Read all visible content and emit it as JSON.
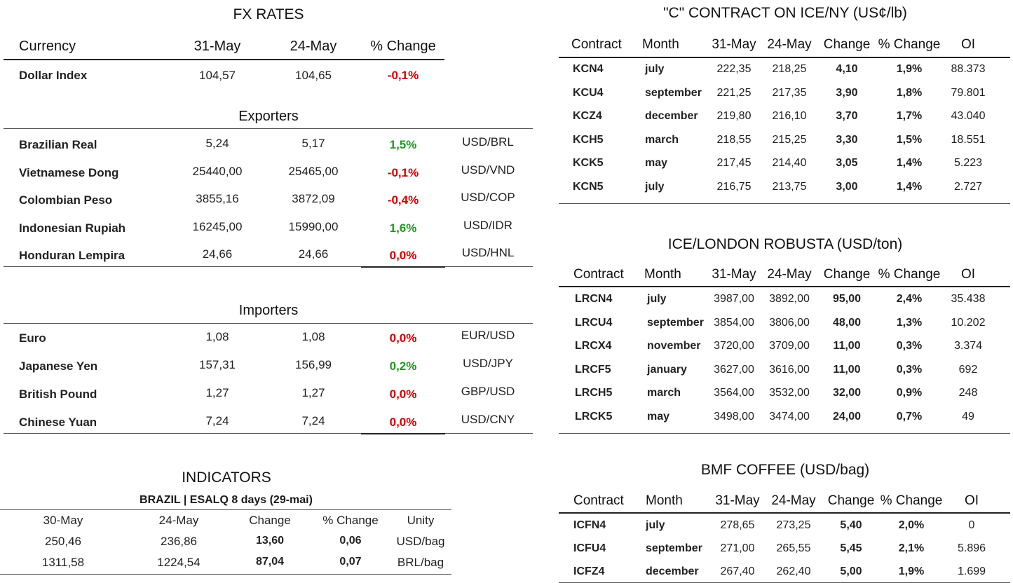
{
  "fx": {
    "title": "FX RATES",
    "headers": {
      "currency": "Currency",
      "d1": "31-May",
      "d2": "24-May",
      "chg": "% Change"
    },
    "dollar_index": {
      "name": "Dollar Index",
      "v1": "104,57",
      "v2": "104,65",
      "chg": "-0,1%"
    },
    "exporters_title": "Exporters",
    "exporters": [
      {
        "name": "Brazilian Real",
        "v1": "5,24",
        "v2": "5,17",
        "chg": "1,5%",
        "pair": "USD/BRL",
        "dir": "pos"
      },
      {
        "name": "Vietnamese Dong",
        "v1": "25440,00",
        "v2": "25465,00",
        "chg": "-0,1%",
        "pair": "USD/VND",
        "dir": "neg"
      },
      {
        "name": "Colombian Peso",
        "v1": "3855,16",
        "v2": "3872,09",
        "chg": "-0,4%",
        "pair": "USD/COP",
        "dir": "neg"
      },
      {
        "name": "Indonesian Rupiah",
        "v1": "16245,00",
        "v2": "15990,00",
        "chg": "1,6%",
        "pair": "USD/IDR",
        "dir": "pos"
      },
      {
        "name": "Honduran Lempira",
        "v1": "24,66",
        "v2": "24,66",
        "chg": "0,0%",
        "pair": "USD/HNL",
        "dir": "zero"
      }
    ],
    "importers_title": "Importers",
    "importers": [
      {
        "name": "Euro",
        "v1": "1,08",
        "v2": "1,08",
        "chg": "0,0%",
        "pair": "EUR/USD",
        "dir": "zero"
      },
      {
        "name": "Japanese Yen",
        "v1": "157,31",
        "v2": "156,99",
        "chg": "0,2%",
        "pair": "USD/JPY",
        "dir": "pos"
      },
      {
        "name": "British Pound",
        "v1": "1,27",
        "v2": "1,27",
        "chg": "0,0%",
        "pair": "GBP/USD",
        "dir": "zero"
      },
      {
        "name": "Chinese Yuan",
        "v1": "7,24",
        "v2": "7,24",
        "chg": "0,0%",
        "pair": "USD/CNY",
        "dir": "zero"
      }
    ]
  },
  "indicators": {
    "title": "INDICATORS",
    "subtitle": "BRAZIL | ESALQ 8 days (29-mai)",
    "headers": [
      "30-May",
      "24-May",
      "Change",
      "% Change",
      "Unity"
    ],
    "rows": [
      [
        "250,46",
        "236,86",
        "13,60",
        "0,06",
        "USD/bag"
      ],
      [
        "1311,58",
        "1224,54",
        "87,04",
        "0,07",
        "BRL/bag"
      ]
    ]
  },
  "contract_headers": [
    "Contract",
    "Month",
    "31-May",
    "24-May",
    "Change",
    "% Change",
    "OI"
  ],
  "ice_ny": {
    "title": "\"C\" CONTRACT ON ICE/NY (US¢/lb)",
    "rows": [
      [
        "KCN4",
        "july",
        "222,35",
        "218,25",
        "4,10",
        "1,9%",
        "88.373"
      ],
      [
        "KCU4",
        "september",
        "221,25",
        "217,35",
        "3,90",
        "1,8%",
        "79.801"
      ],
      [
        "KCZ4",
        "december",
        "219,80",
        "216,10",
        "3,70",
        "1,7%",
        "43.040"
      ],
      [
        "KCH5",
        "march",
        "218,55",
        "215,25",
        "3,30",
        "1,5%",
        "18.551"
      ],
      [
        "KCK5",
        "may",
        "217,45",
        "214,40",
        "3,05",
        "1,4%",
        "5.223"
      ],
      [
        "KCN5",
        "july",
        "216,75",
        "213,75",
        "3,00",
        "1,4%",
        "2.727"
      ]
    ]
  },
  "ice_london": {
    "title": "ICE/LONDON ROBUSTA (USD/ton)",
    "rows": [
      [
        "LRCN4",
        "july",
        "3987,00",
        "3892,00",
        "95,00",
        "2,4%",
        "35.438"
      ],
      [
        "LRCU4",
        "september",
        "3854,00",
        "3806,00",
        "48,00",
        "1,3%",
        "10.202"
      ],
      [
        "LRCX4",
        "november",
        "3720,00",
        "3709,00",
        "11,00",
        "0,3%",
        "3.374"
      ],
      [
        "LRCF5",
        "january",
        "3627,00",
        "3616,00",
        "11,00",
        "0,3%",
        "692"
      ],
      [
        "LRCH5",
        "march",
        "3564,00",
        "3532,00",
        "32,00",
        "0,9%",
        "248"
      ],
      [
        "LRCK5",
        "may",
        "3498,00",
        "3474,00",
        "24,00",
        "0,7%",
        "49"
      ]
    ]
  },
  "bmf": {
    "title": "BMF COFFEE (USD/bag)",
    "rows": [
      [
        "ICFN4",
        "july",
        "278,65",
        "273,25",
        "5,40",
        "2,0%",
        "0"
      ],
      [
        "ICFU4",
        "september",
        "271,00",
        "265,55",
        "5,45",
        "2,1%",
        "5.896"
      ],
      [
        "ICFZ4",
        "december",
        "267,40",
        "262,40",
        "5,00",
        "1,9%",
        "1.699"
      ]
    ]
  },
  "colors": {
    "positive": "#1f9a1f",
    "negative": "#d40000"
  }
}
